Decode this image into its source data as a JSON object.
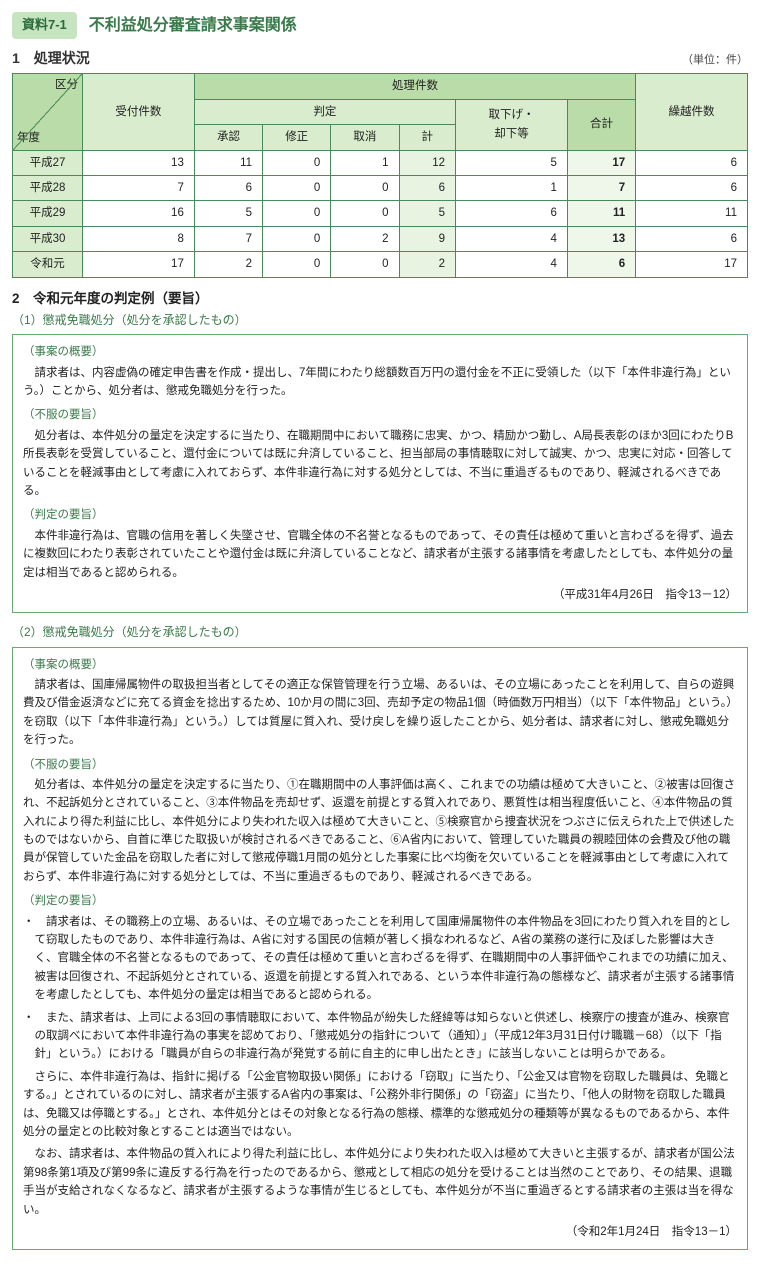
{
  "header": {
    "badge": "資料7-1",
    "title": "不利益処分審査請求事案関係"
  },
  "section1": {
    "title": "1　処理状況",
    "unit": "（単位：件）",
    "diag_top": "区分",
    "diag_bottom": "年度",
    "cols": {
      "received": "受付件数",
      "processed": "処理件数",
      "judgment": "判定",
      "approved": "承認",
      "corrected": "修正",
      "cancelled": "取消",
      "subtotal": "計",
      "withdrawn": "取下げ・\n却下等",
      "total": "合計",
      "carried": "繰越件数"
    },
    "rows": [
      {
        "year": "平成27",
        "received": 13,
        "approved": 11,
        "corrected": 0,
        "cancelled": 1,
        "subtotal": 12,
        "withdrawn": 5,
        "total": 17,
        "carried": 6
      },
      {
        "year": "平成28",
        "received": 7,
        "approved": 6,
        "corrected": 0,
        "cancelled": 0,
        "subtotal": 6,
        "withdrawn": 1,
        "total": 7,
        "carried": 6
      },
      {
        "year": "平成29",
        "received": 16,
        "approved": 5,
        "corrected": 0,
        "cancelled": 0,
        "subtotal": 5,
        "withdrawn": 6,
        "total": 11,
        "carried": 11
      },
      {
        "year": "平成30",
        "received": 8,
        "approved": 7,
        "corrected": 0,
        "cancelled": 2,
        "subtotal": 9,
        "withdrawn": 4,
        "total": 13,
        "carried": 6
      },
      {
        "year": "令和元",
        "received": 17,
        "approved": 2,
        "corrected": 0,
        "cancelled": 0,
        "subtotal": 2,
        "withdrawn": 4,
        "total": 6,
        "carried": 17
      }
    ]
  },
  "section2": {
    "title": "2　令和元年度の判定例（要旨）",
    "case1": {
      "heading": "（1）懲戒免職処分（処分を承認したもの）",
      "overview_label": "（事案の概要）",
      "overview": "請求者は、内容虚偽の確定申告書を作成・提出し、7年間にわたり総額数百万円の還付金を不正に受領した（以下「本件非違行為」という。）ことから、処分者は、懲戒免職処分を行った。",
      "obj_label": "（不服の要旨）",
      "obj": "処分者は、本件処分の量定を決定するに当たり、在職期間中において職務に忠実、かつ、精励かつ勤し、A局長表彰のほか3回にわたりB所長表彰を受賞していること、還付金については既に弁済していること、担当部局の事情聴取に対して誠実、かつ、忠実に対応・回答していることを軽減事由として考慮に入れておらず、本件非違行為に対する処分としては、不当に重過ぎるものであり、軽減されるべきである。",
      "judge_label": "（判定の要旨）",
      "judge": "本件非違行為は、官職の信用を著しく失墜させ、官職全体の不名誉となるものであって、その責任は極めて重いと言わざるを得ず、過去に複数回にわたり表彰されていたことや還付金は既に弁済していることなど、請求者が主張する諸事情を考慮したとしても、本件処分の量定は相当であると認められる。",
      "date": "（平成31年4月26日　指令13－12）"
    },
    "case2": {
      "heading": "（2）懲戒免職処分（処分を承認したもの）",
      "overview_label": "（事案の概要）",
      "overview": "請求者は、国庫帰属物件の取扱担当者としてその適正な保管管理を行う立場、あるいは、その立場にあったことを利用して、自らの遊興費及び借金返済などに充てる資金を捻出するため、10か月の間に3回、売却予定の物品1個（時価数万円相当）（以下「本件物品」という。）を窃取（以下「本件非違行為」という。）しては質屋に質入れ、受け戻しを繰り返したことから、処分者は、請求者に対し、懲戒免職処分を行った。",
      "obj_label": "（不服の要旨）",
      "obj": "処分者は、本件処分の量定を決定するに当たり、①在職期間中の人事評価は高く、これまでの功績は極めて大きいこと、②被害は回復され、不起訴処分とされていること、③本件物品を売却せず、返還を前提とする質入れであり、悪質性は相当程度低いこと、④本件物品の質入れにより得た利益に比し、本件処分により失われた収入は極めて大きいこと、⑤検察官から捜査状況をつぶさに伝えられた上で供述したものではないから、自首に準じた取扱いが検討されるべきであること、⑥A省内において、管理していた職員の親睦団体の会費及び他の職員が保管していた金品を窃取した者に対して懲戒停職1月間の処分とした事案に比べ均衡を欠いていることを軽減事由として考慮に入れておらず、本件非違行為に対する処分としては、不当に重過ぎるものであり、軽減されるべきである。",
      "judge_label": "（判定の要旨）",
      "judge_b1": "・　請求者は、その職務上の立場、あるいは、その立場であったことを利用して国庫帰属物件の本件物品を3回にわたり質入れを目的として窃取したものであり、本件非違行為は、A省に対する国民の信頼が著しく損なわれるなど、A省の業務の遂行に及ぼした影響は大きく、官職全体の不名誉となるものであって、その責任は極めて重いと言わざるを得ず、在職期間中の人事評価やこれまでの功績に加え、被害は回復され、不起訴処分とされている、返還を前提とする質入れである、という本件非違行為の態様など、請求者が主張する諸事情を考慮したとしても、本件処分の量定は相当であると認められる。",
      "judge_b2": "・　また、請求者は、上司による3回の事情聴取において、本件物品が紛失した経緯等は知らないと供述し、検察庁の捜査が進み、検察官の取調べにおいて本件非違行為の事実を認めており、「懲戒処分の指針について（通知）」（平成12年3月31日付け職職－68）（以下「指針」という。）における「職員が自らの非違行為が発覚する前に自主的に申し出たとき」に該当しないことは明らかである。",
      "judge_p3": "さらに、本件非違行為は、指針に掲げる「公金官物取扱い関係」における「窃取」に当たり、「公金又は官物を窃取した職員は、免職とする。」とされているのに対し、請求者が主張するA省内の事案は、「公務外非行関係」の「窃盗」に当たり、「他人の財物を窃取した職員は、免職又は停職とする。」とされ、本件処分とはその対象となる行為の態様、標準的な懲戒処分の種類等が異なるものであるから、本件処分の量定との比較対象とすることは適当ではない。",
      "judge_p4": "なお、請求者は、本件物品の質入れにより得た利益に比し、本件処分により失われた収入は極めて大きいと主張するが、請求者が国公法第98条第1項及び第99条に違反する行為を行ったのであるから、懲戒として相応の処分を受けることは当然のことであり、その結果、退職手当が支給されなくなるなど、請求者が主張するような事情が生じるとしても、本件処分が不当に重過ぎるとする請求者の主張は当を得ない。",
      "date": "（令和2年1月24日　指令13－1）"
    }
  }
}
